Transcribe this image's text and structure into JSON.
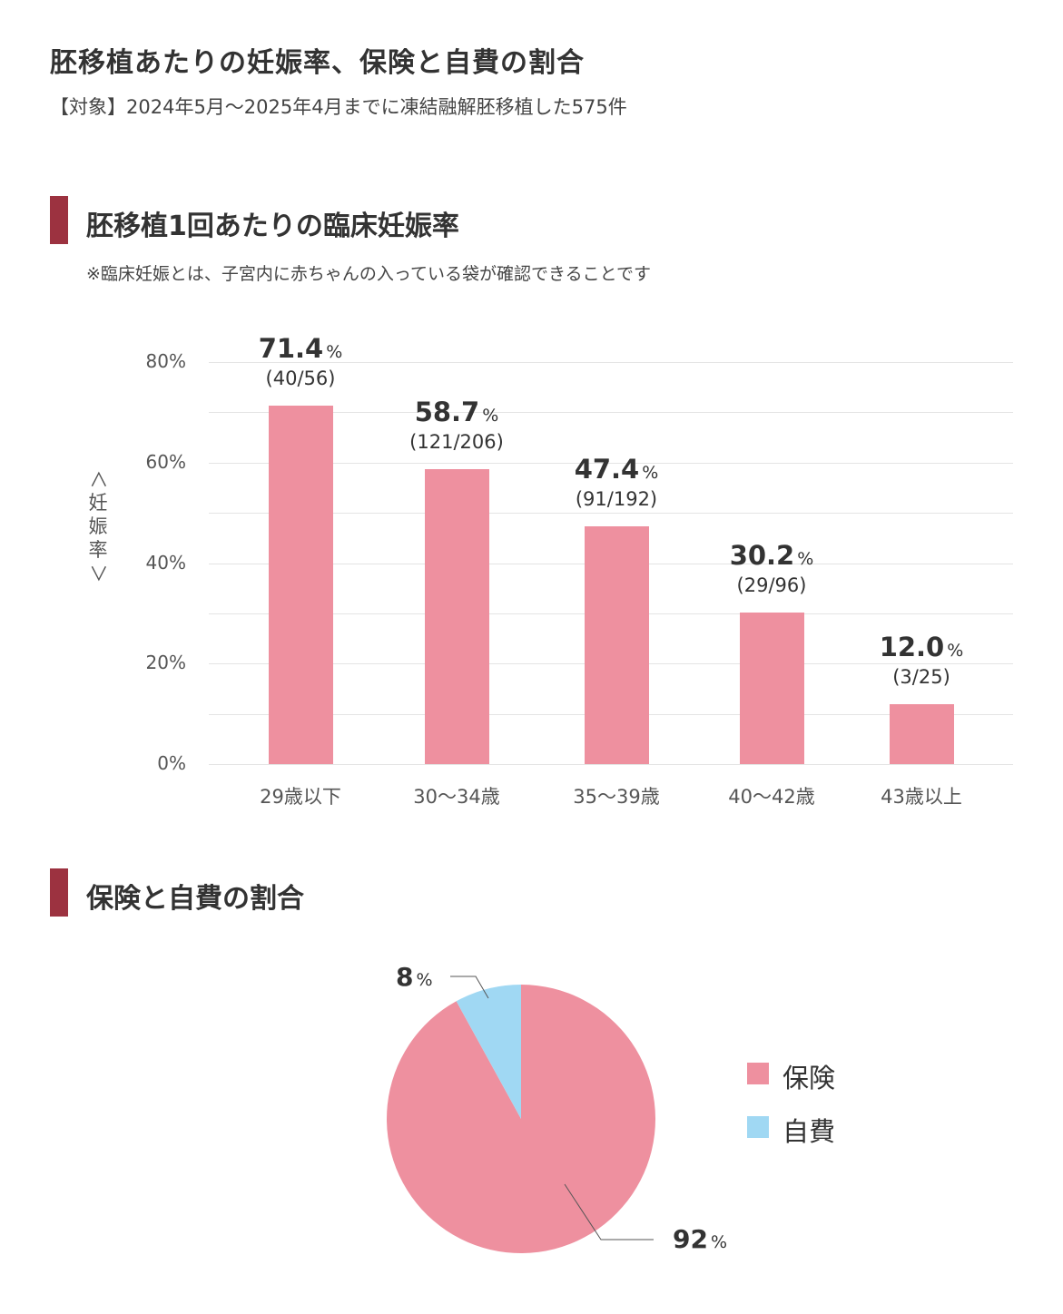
{
  "header": {
    "title": "胚移植あたりの妊娠率、保険と自費の割合",
    "subtitle": "【対象】2024年5月〜2025年4月までに凍結融解胚移植した575件"
  },
  "section1": {
    "heading": "胚移植1回あたりの臨床妊娠率",
    "note": "※臨床妊娠とは、子宮内に赤ちゃんの入っている袋が確認できることです"
  },
  "section2": {
    "heading": "保険と自費の割合"
  },
  "colors": {
    "accent": "#9c3240",
    "bar": "#ee909f",
    "self_pay": "#a0d8f3",
    "grid": "#e4e4e4"
  },
  "chart_data": [
    {
      "type": "bar",
      "categories": [
        "29歳以下",
        "30〜34歳",
        "35〜39歳",
        "40〜42歳",
        "43歳以上"
      ],
      "values": [
        71.4,
        58.7,
        47.4,
        30.2,
        12.0
      ],
      "value_labels": [
        "71.4",
        "58.7",
        "47.4",
        "30.2",
        "12.0"
      ],
      "value_unit": "%",
      "counts": [
        "(40/56)",
        "(121/206)",
        "(91/192)",
        "(29/96)",
        "(3/25)"
      ],
      "ylabel": "＜妊娠率＞",
      "ylabel_chars": [
        "＜",
        "妊",
        "娠",
        "率",
        "＞"
      ],
      "yticks": [
        "80%",
        "60%",
        "40%",
        "20%",
        "0%"
      ],
      "ylim": [
        0,
        80
      ],
      "grid": true
    },
    {
      "type": "pie",
      "labels": [
        "保険",
        "自費"
      ],
      "values": [
        92,
        8
      ],
      "value_labels": [
        "92",
        "8"
      ],
      "value_unit": "%",
      "colors": [
        "#ee909f",
        "#a0d8f3"
      ],
      "legend": "right"
    }
  ]
}
